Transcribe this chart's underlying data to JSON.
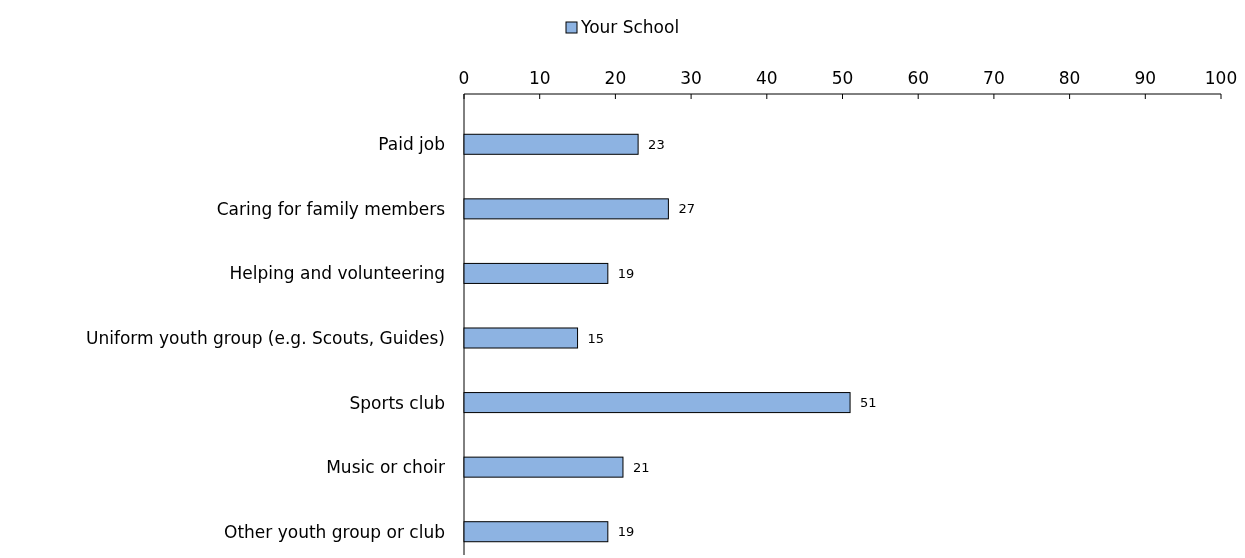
{
  "chart_data": {
    "type": "bar",
    "orientation": "horizontal",
    "categories": [
      "Paid job",
      "Caring for family members",
      "Helping and volunteering",
      "Uniform youth group (e.g. Scouts, Guides)",
      "Sports club",
      "Music or choir",
      "Other youth group or club"
    ],
    "series": [
      {
        "name": "Your School",
        "color": "#8db3e2",
        "values": [
          23,
          27,
          19,
          15,
          51,
          21,
          19
        ]
      }
    ],
    "xlim": [
      0,
      100
    ],
    "xticks": [
      0,
      10,
      20,
      30,
      40,
      50,
      60,
      70,
      80,
      90,
      100
    ],
    "data_labels": true,
    "legend": "top",
    "grid": false
  }
}
